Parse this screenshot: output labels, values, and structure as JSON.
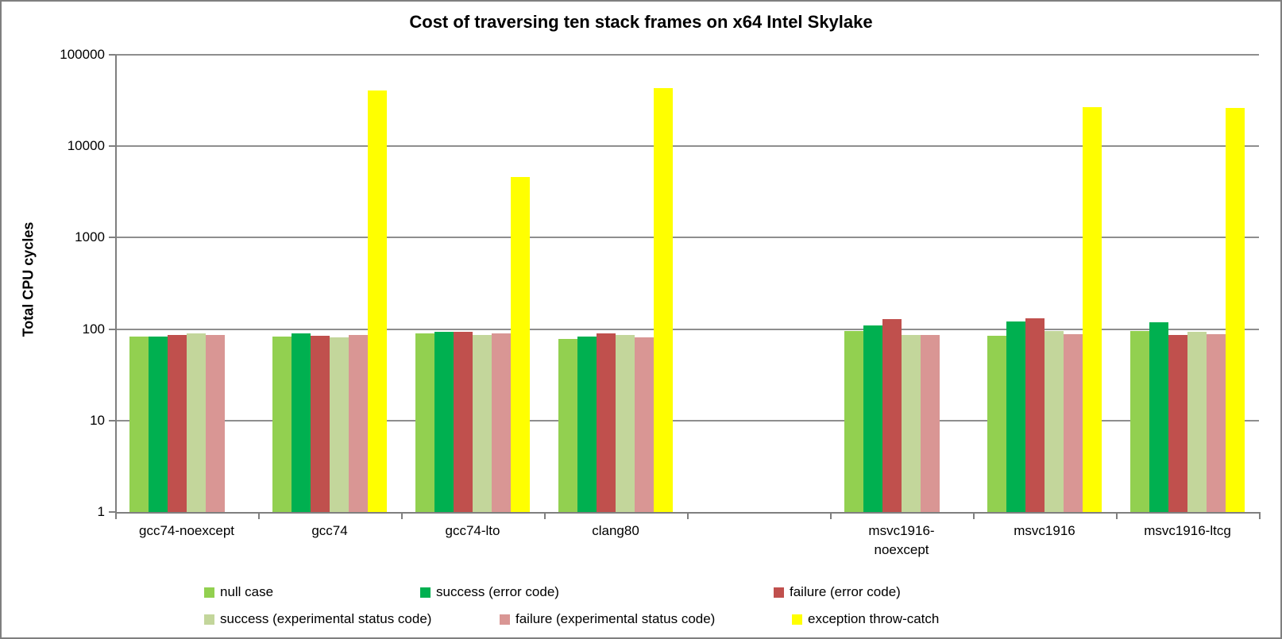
{
  "chart_data": {
    "type": "bar",
    "title": "Cost of traversing ten stack frames on x64 Intel Skylake",
    "xlabel": "",
    "ylabel": "Total CPU cycles",
    "y_scale": "log10",
    "ylim": [
      1,
      100000
    ],
    "y_ticks": [
      1,
      10,
      100,
      1000,
      10000,
      100000
    ],
    "y_tick_labels": [
      "1",
      "10",
      "100",
      "1000",
      "10000",
      "100000"
    ],
    "grid": true,
    "legend_position": "bottom",
    "categories": [
      "gcc74-noexcept",
      "gcc74",
      "gcc74-lto",
      "clang80",
      "",
      "msvc1916-\nnoexcept",
      "msvc1916",
      "msvc1916-ltcg"
    ],
    "series": [
      {
        "name": "null case",
        "color": "#92D050",
        "values": [
          83,
          83,
          90,
          78,
          null,
          95,
          84,
          96
        ]
      },
      {
        "name": "success (error code)",
        "color": "#00B050",
        "values": [
          83,
          90,
          93,
          83,
          null,
          110,
          120,
          118
        ]
      },
      {
        "name": "failure (error code)",
        "color": "#C0504D",
        "values": [
          86,
          84,
          93,
          90,
          null,
          129,
          132,
          86
        ]
      },
      {
        "name": "success (experimental status code)",
        "color": "#C3D69B",
        "values": [
          89,
          81,
          86,
          86,
          null,
          87,
          95,
          93
        ]
      },
      {
        "name": "failure (experimental status code)",
        "color": "#D99694",
        "values": [
          86,
          86,
          89,
          82,
          null,
          86,
          88,
          88
        ]
      },
      {
        "name": "exception throw-catch",
        "color": "#FFFF00",
        "values": [
          null,
          41000,
          4600,
          43000,
          null,
          null,
          27000,
          26000
        ]
      }
    ]
  },
  "style": {
    "gridline_color": "#8e8e8e",
    "axis_color": "#7f7f7f",
    "text_color": "#000000",
    "background": "#ffffff",
    "border_color": "#7f7f7f"
  }
}
